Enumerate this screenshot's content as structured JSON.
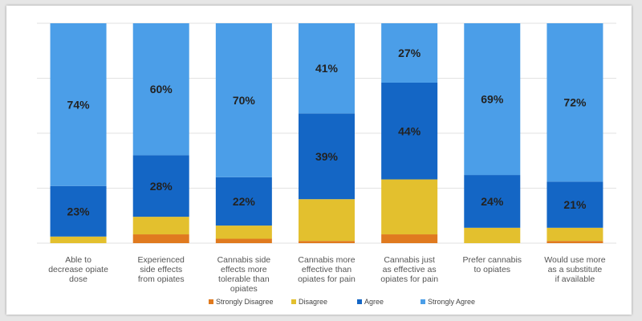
{
  "chart_data": {
    "type": "bar",
    "stacked": true,
    "percent": true,
    "categories": [
      [
        "Able to",
        "decrease opiate",
        "dose"
      ],
      [
        "Experienced",
        "side effects",
        "from opiates"
      ],
      [
        "Cannabis side",
        "effects more",
        "tolerable than",
        "opiates"
      ],
      [
        "Cannabis more",
        "effective than",
        "opiates for pain"
      ],
      [
        "Cannabis just",
        "as effective as",
        "opiates for pain"
      ],
      [
        "Prefer cannabis",
        "to opiates"
      ],
      [
        "Would use more",
        "as a substitute",
        "if available"
      ]
    ],
    "series": [
      {
        "name": "Strongly Disagree",
        "color": "#e07a1f",
        "values": [
          0,
          4,
          2,
          1,
          4,
          0,
          1
        ]
      },
      {
        "name": "Disagree",
        "color": "#e3c02e",
        "values": [
          3,
          8,
          6,
          19,
          25,
          7,
          6
        ]
      },
      {
        "name": "Agree",
        "color": "#1466c5",
        "values": [
          23,
          28,
          22,
          39,
          44,
          24,
          21
        ]
      },
      {
        "name": "Strongly Agree",
        "color": "#4b9ee8",
        "values": [
          74,
          60,
          70,
          41,
          27,
          69,
          72
        ]
      }
    ],
    "data_labels": {
      "Agree": [
        "23%",
        "28%",
        "22%",
        "39%",
        "44%",
        "24%",
        "21%"
      ],
      "Strongly Agree": [
        "74%",
        "60%",
        "70%",
        "41%",
        "27%",
        "69%",
        "72%"
      ]
    },
    "ylim": [
      0,
      100
    ],
    "grid": true,
    "legend": "bottom"
  }
}
